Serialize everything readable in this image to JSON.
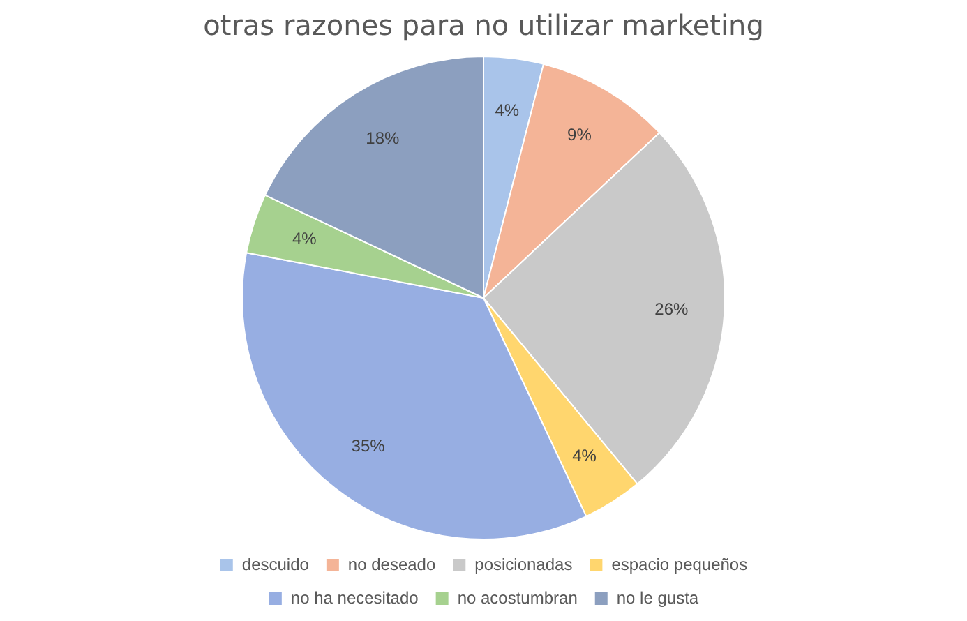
{
  "chart_data": {
    "type": "pie",
    "title": "otras razones para no utilizar marketing",
    "categories": [
      "descuido",
      "no deseado",
      "posicionadas",
      "espacio pequeños",
      "no ha necesitado",
      "no acostumbran",
      "no le gusta"
    ],
    "values": [
      4,
      9,
      26,
      4,
      35,
      4,
      18
    ],
    "value_labels": [
      "4%",
      "9%",
      "26%",
      "4%",
      "35%",
      "4%",
      "18%"
    ],
    "colors": [
      "#a9c4ea",
      "#f4b497",
      "#c9c9c9",
      "#ffd66e",
      "#97aee2",
      "#a6d18f",
      "#8c9fbf"
    ],
    "legend": "bottom"
  }
}
